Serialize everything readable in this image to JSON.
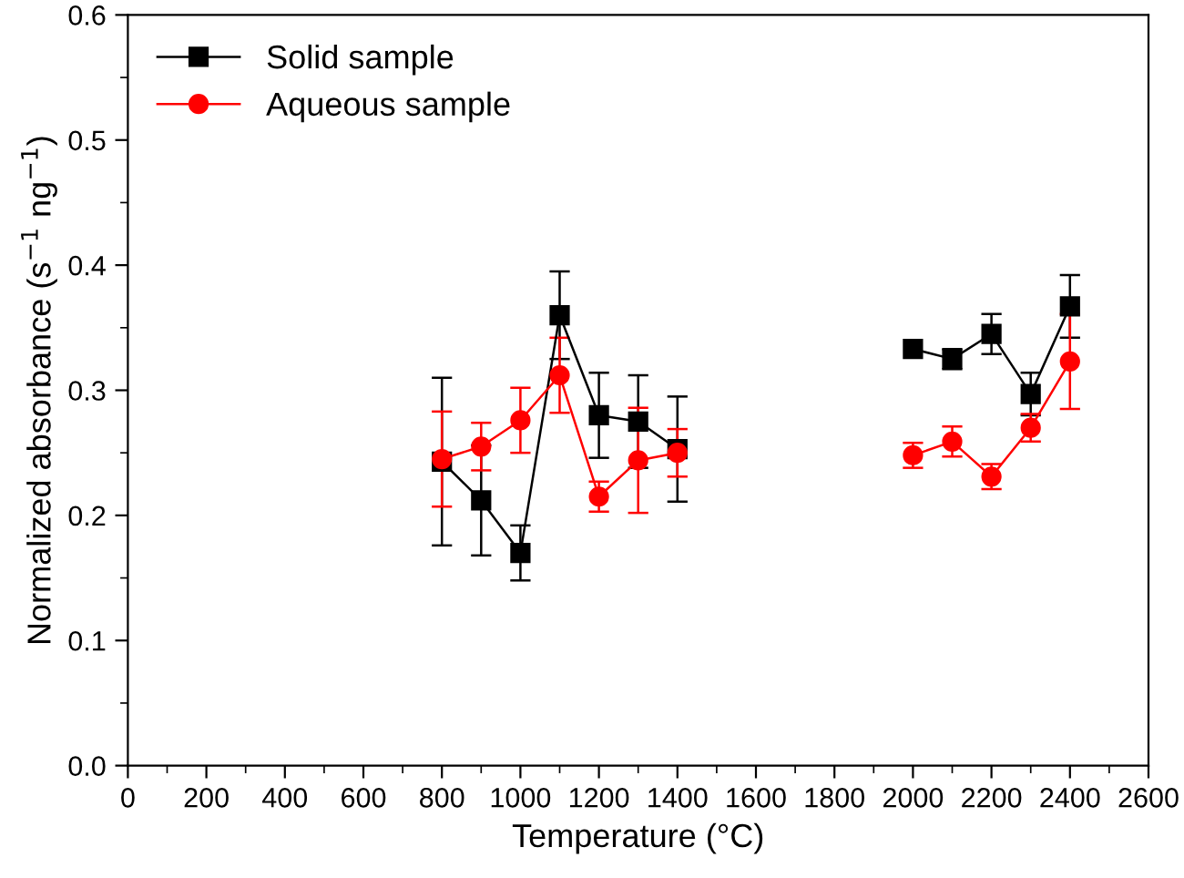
{
  "chart_data": {
    "type": "line",
    "xlabel": "Temperature (°C)",
    "ylabel": "Normalized absorbance (s$^{−1}$ ng$^{−1}$)",
    "xlim": [
      0,
      2600
    ],
    "xticks": [
      0,
      200,
      400,
      600,
      800,
      1000,
      1200,
      1400,
      1600,
      1800,
      2000,
      2200,
      2400,
      2600
    ],
    "ylim": [
      0,
      0.6
    ],
    "yticks": [
      {
        "value": 0,
        "label": "0.0"
      },
      0.1,
      0.2,
      0.3,
      0.4,
      0.5,
      0.6
    ],
    "grid": false,
    "legend": "top left",
    "line_style": "solid",
    "series": [
      {
        "name": "Solid sample",
        "color": "#000000",
        "marker": "square",
        "x": [
          800,
          900,
          1000,
          1100,
          1200,
          1300,
          1400,
          1700,
          2000,
          2100,
          2200,
          2300,
          2400
        ],
        "values": [
          0.243,
          0.212,
          0.17,
          0.36,
          0.28,
          0.275,
          0.253,
          null,
          0.333,
          0.325,
          0.345,
          0.297,
          0.367
        ],
        "errors": [
          0.067,
          0.044,
          0.022,
          0.035,
          0.034,
          0.037,
          0.042,
          null,
          null,
          0.008,
          0.016,
          0.017,
          0.025
        ]
      },
      {
        "name": "Aqueous sample",
        "color": "#ff0000",
        "marker": "circle",
        "x": [
          800,
          900,
          1000,
          1100,
          1200,
          1300,
          1400,
          1700,
          2000,
          2100,
          2200,
          2300,
          2400
        ],
        "values": [
          0.245,
          0.255,
          0.276,
          0.312,
          0.215,
          0.244,
          0.25,
          null,
          0.248,
          0.259,
          0.231,
          0.27,
          0.323
        ],
        "errors": [
          0.038,
          0.019,
          0.026,
          0.03,
          0.012,
          0.042,
          0.019,
          null,
          0.01,
          0.012,
          0.01,
          0.011,
          0.038
        ]
      }
    ]
  }
}
